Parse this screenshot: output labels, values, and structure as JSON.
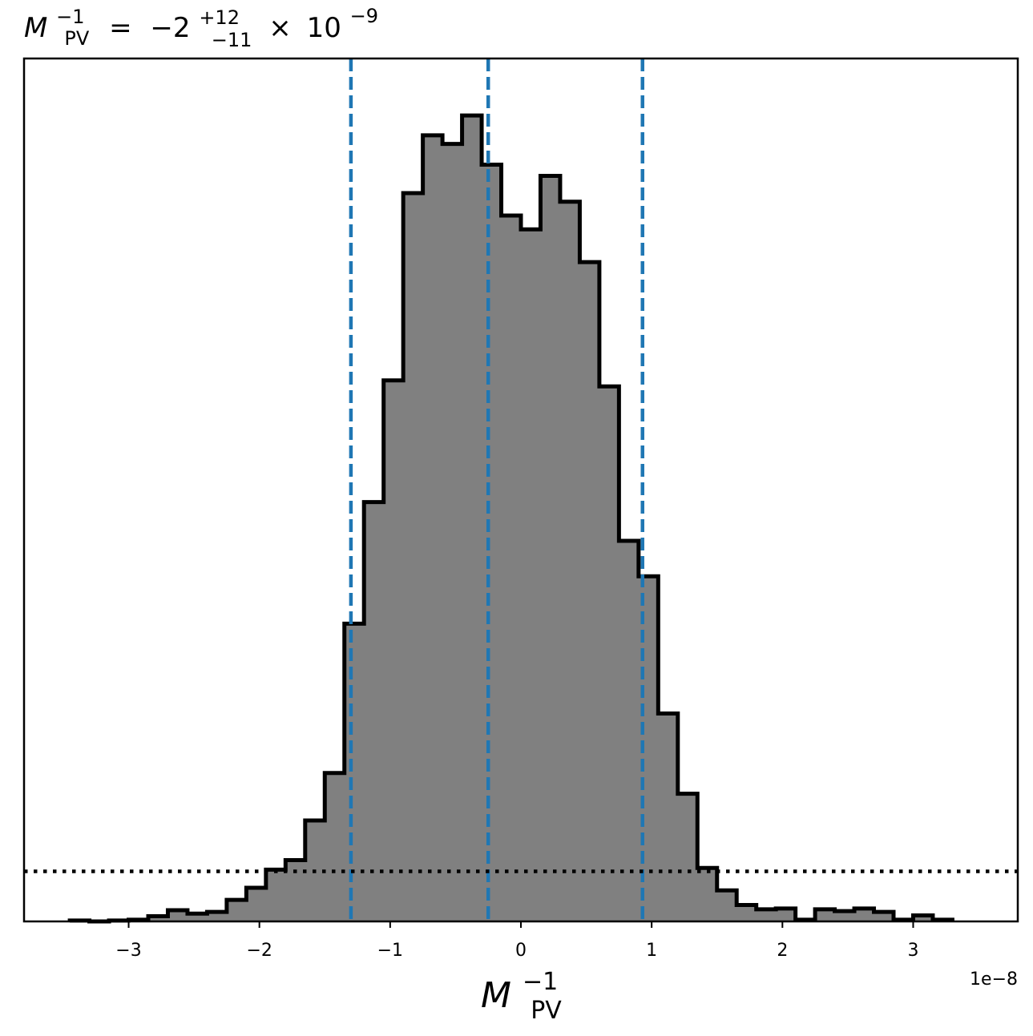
{
  "chart_data": {
    "type": "histogram",
    "title": {
      "symbol": "M",
      "symbol_sub": "PV",
      "symbol_sup": "−1",
      "equals": "=",
      "value": "−2",
      "upper": "+12",
      "lower": "−11",
      "times": "×",
      "exp_base": "10",
      "exp_power": "−9"
    },
    "xlabel": {
      "symbol": "M",
      "sub": "PV",
      "sup": "−1"
    },
    "x_offset_label": "1e−8",
    "x_scale": 1e-08,
    "xlim": [
      -3.8,
      3.8
    ],
    "ylim": [
      0,
      1.0
    ],
    "x_ticks": [
      -3,
      -2,
      -1,
      0,
      1,
      2,
      3
    ],
    "x_tick_labels": [
      "−3",
      "−2",
      "−1",
      "0",
      "1",
      "2",
      "3"
    ],
    "bin_edges": [
      -3.45,
      -3.3,
      -3.15,
      -3.0,
      -2.85,
      -2.7,
      -2.55,
      -2.4,
      -2.25,
      -2.1,
      -1.95,
      -1.8,
      -1.65,
      -1.5,
      -1.35,
      -1.2,
      -1.05,
      -0.9,
      -0.75,
      -0.6,
      -0.45,
      -0.3,
      -0.15,
      0.0,
      0.15,
      0.3,
      0.45,
      0.6,
      0.75,
      0.9,
      1.05,
      1.2,
      1.35,
      1.5,
      1.65,
      1.8,
      1.95,
      2.1,
      2.25,
      2.4,
      2.55,
      2.7,
      2.85,
      3.0,
      3.15,
      3.3
    ],
    "bin_values": [
      0.001,
      0.0,
      0.001,
      0.002,
      0.006,
      0.013,
      0.009,
      0.011,
      0.025,
      0.039,
      0.06,
      0.071,
      0.117,
      0.172,
      0.345,
      0.486,
      0.627,
      0.844,
      0.911,
      0.901,
      0.934,
      0.877,
      0.818,
      0.802,
      0.864,
      0.834,
      0.764,
      0.62,
      0.441,
      0.4,
      0.241,
      0.148,
      0.062,
      0.036,
      0.019,
      0.014,
      0.015,
      0.002,
      0.014,
      0.012,
      0.015,
      0.011,
      0.002,
      0.007,
      0.002
    ],
    "vlines": [
      -1.3,
      -0.25,
      0.93
    ],
    "hline": 0.058,
    "colors": {
      "fill": "#808080",
      "edge": "#000000",
      "vline": "#1f77b4",
      "hline": "#000000"
    },
    "grid": false,
    "legend": "none"
  }
}
